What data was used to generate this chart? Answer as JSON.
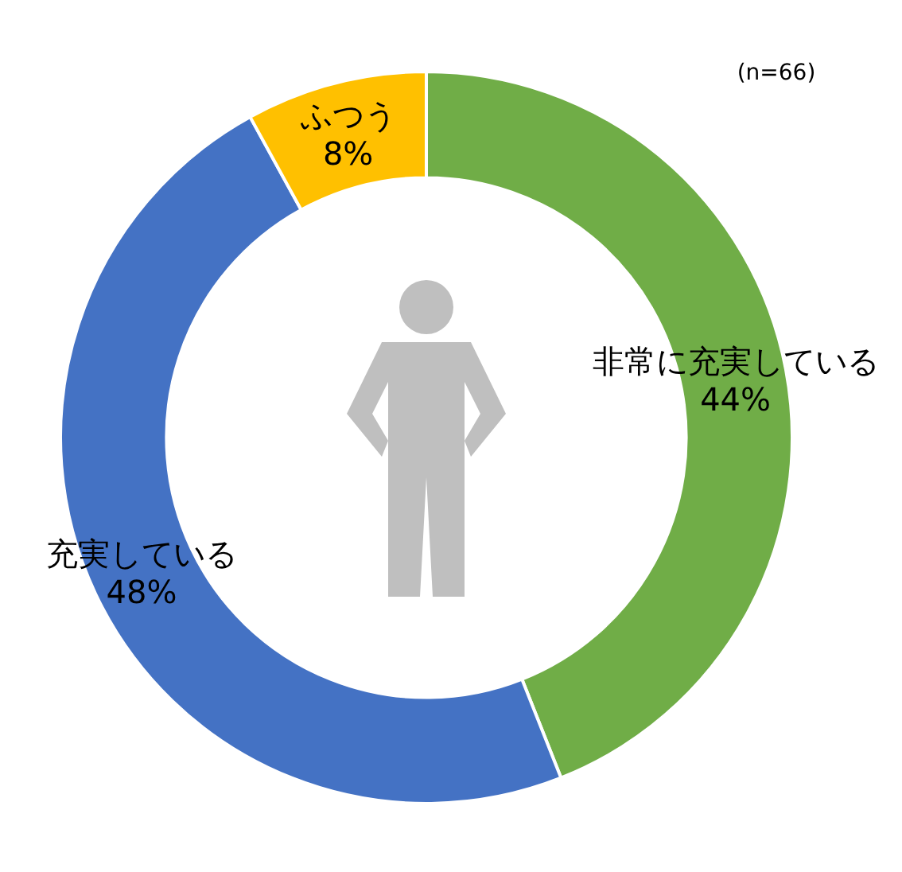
{
  "chart_data": {
    "type": "donut",
    "categories": [
      "非常に充実している",
      "充実している",
      "ふつう"
    ],
    "values": [
      44,
      48,
      8
    ],
    "colors": [
      "#70ad47",
      "#4472c4",
      "#ffc000"
    ],
    "value_labels": [
      "44%",
      "48%",
      "8%"
    ],
    "annotations": [
      "(n=66)"
    ]
  }
}
